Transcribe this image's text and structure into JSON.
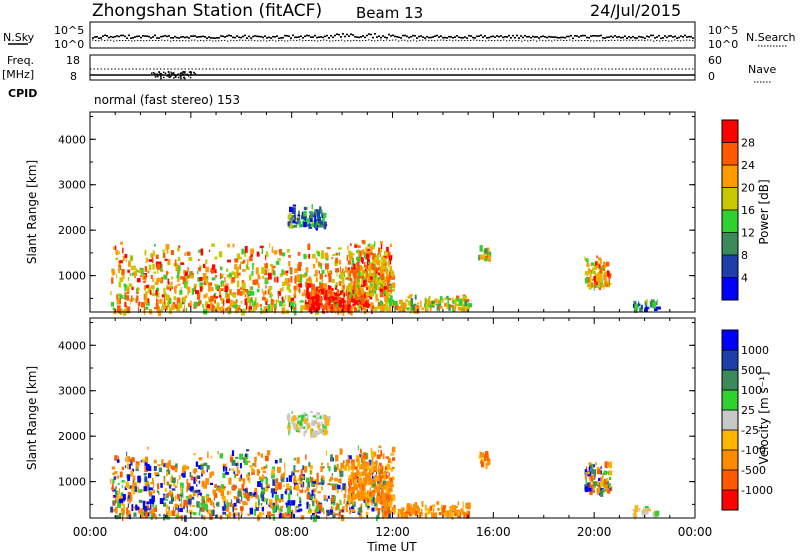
{
  "header": {
    "station": "Zhongshan Station (fitACF)",
    "beam": "Beam 13",
    "date": "24/Jul/2015"
  },
  "top_panels": {
    "nsky_label": "N.Sky",
    "nsky_ticks": [
      "10^5",
      "10^0"
    ],
    "nsearch_label": "N.Search",
    "nsearch_ticks": [
      "10^5",
      "10^0"
    ],
    "freq_label": "Freq.",
    "freq_unit": "[MHz]",
    "freq_ticks": [
      "18",
      "8"
    ],
    "nave_label": "Nave",
    "nave_ticks": [
      "60",
      "0"
    ],
    "cpid_label": "CPID",
    "cpid_value": "normal (fast stereo) 153"
  },
  "chart_data": [
    {
      "type": "heatmap",
      "name": "power-panel",
      "ylabel": "Slant Range [km]",
      "ylim": [
        200,
        4600
      ],
      "yticks": [
        1000,
        2000,
        3000,
        4000
      ],
      "ytick_labels": [
        "1000",
        "2000",
        "3000",
        "4000"
      ],
      "xlim": [
        0,
        24
      ],
      "colorbar": {
        "label": "Power [dB]",
        "tick_labels": [
          "4",
          "8",
          "12",
          "16",
          "20",
          "24",
          "28"
        ],
        "colors": [
          "#0000ff",
          "#1f3fa8",
          "#3a8a5a",
          "#2fd02f",
          "#c8c800",
          "#ff9a00",
          "#ff5a00",
          "#ff0000"
        ]
      },
      "echo_regions": [
        {
          "t0": 0.8,
          "t1": 11.8,
          "r0": 250,
          "r1": 1800,
          "level": "high"
        },
        {
          "t0": 8.5,
          "t1": 11.0,
          "r0": 300,
          "r1": 900,
          "level": "max"
        },
        {
          "t0": 10.2,
          "t1": 12.0,
          "r0": 600,
          "r1": 1800,
          "level": "high"
        },
        {
          "t0": 11.5,
          "t1": 15.0,
          "r0": 300,
          "r1": 600,
          "level": "mid"
        },
        {
          "t0": 7.8,
          "t1": 9.4,
          "r0": 2100,
          "r1": 2600,
          "level": "low"
        },
        {
          "t0": 15.4,
          "t1": 15.8,
          "r0": 1400,
          "r1": 1700,
          "level": "mid"
        },
        {
          "t0": 19.6,
          "t1": 20.6,
          "r0": 800,
          "r1": 1500,
          "level": "high"
        },
        {
          "t0": 21.5,
          "t1": 22.5,
          "r0": 300,
          "r1": 500,
          "level": "low"
        }
      ]
    },
    {
      "type": "heatmap",
      "name": "velocity-panel",
      "ylabel": "Slant Range [km]",
      "xlabel": "Time UT",
      "ylim": [
        200,
        4600
      ],
      "yticks": [
        1000,
        2000,
        3000,
        4000
      ],
      "ytick_labels": [
        "1000",
        "2000",
        "3000",
        "4000"
      ],
      "xlim": [
        0,
        24
      ],
      "xticks": [
        0,
        4,
        8,
        12,
        16,
        20,
        24
      ],
      "xtick_labels": [
        "00:00",
        "04:00",
        "08:00",
        "12:00",
        "16:00",
        "20:00",
        "00:00"
      ],
      "colorbar": {
        "label": "Velocity [m s⁻¹]",
        "tick_labels": [
          "-1000",
          "-500",
          "-100",
          "-25",
          "25",
          "100",
          "500",
          "1000"
        ],
        "colors": [
          "#ff0000",
          "#ff5a00",
          "#ff8c00",
          "#ffb400",
          "#c8c8c8",
          "#2fd02f",
          "#3a8a5a",
          "#1f3fa8",
          "#0000ff"
        ]
      },
      "echo_regions": [
        {
          "t0": 0.8,
          "t1": 11.8,
          "r0": 250,
          "r1": 1800,
          "level": "mixed"
        },
        {
          "t0": 10.2,
          "t1": 12.0,
          "r0": 600,
          "r1": 1800,
          "level": "away"
        },
        {
          "t0": 11.5,
          "t1": 15.0,
          "r0": 300,
          "r1": 600,
          "level": "away"
        },
        {
          "t0": 7.8,
          "t1": 9.4,
          "r0": 2100,
          "r1": 2600,
          "level": "slow"
        },
        {
          "t0": 15.4,
          "t1": 15.8,
          "r0": 1400,
          "r1": 1700,
          "level": "away"
        },
        {
          "t0": 19.6,
          "t1": 20.6,
          "r0": 800,
          "r1": 1500,
          "level": "mixed"
        },
        {
          "t0": 21.5,
          "t1": 22.5,
          "r0": 300,
          "r1": 500,
          "level": "slow"
        }
      ]
    }
  ]
}
